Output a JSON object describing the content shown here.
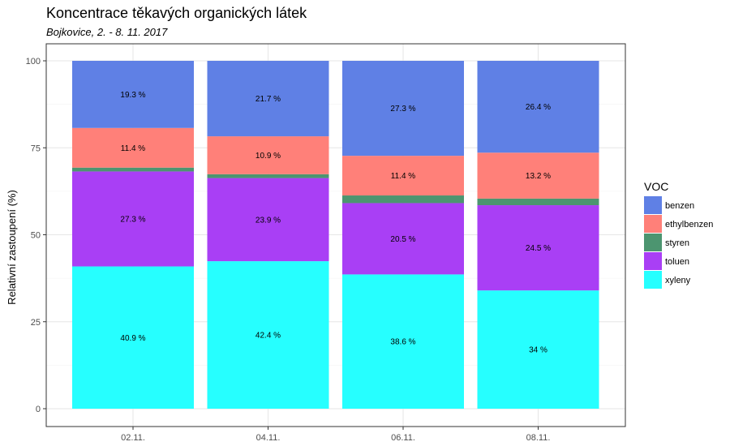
{
  "title": "Koncentrace těkavých organických látek",
  "subtitle": "Bojkovice, 2. - 8. 11. 2017",
  "chart_data": {
    "type": "bar",
    "stacked": true,
    "ylabel": "Relativní zastoupení (%)",
    "xlabel": "",
    "ylim": [
      0,
      100
    ],
    "yticks": [
      0,
      25,
      50,
      75,
      100
    ],
    "grid": true,
    "legend_position": "right",
    "legend_title": "VOC",
    "categories": [
      "02.11.",
      "04.11.",
      "06.11.",
      "08.11."
    ],
    "series": [
      {
        "name": "xyleny",
        "color": "#26FFFF",
        "values": [
          40.9,
          42.4,
          38.6,
          34.0
        ],
        "labels": [
          "40.9 %",
          "42.4 %",
          "38.6 %",
          "34 %"
        ]
      },
      {
        "name": "toluen",
        "color": "#A93FF5",
        "values": [
          27.3,
          23.9,
          20.5,
          24.5
        ],
        "labels": [
          "27.3 %",
          "23.9 %",
          "20.5 %",
          "24.5 %"
        ]
      },
      {
        "name": "styren",
        "color": "#4C9570",
        "values": [
          1.1,
          1.1,
          2.2,
          1.9
        ],
        "labels": [
          "",
          "",
          "",
          ""
        ]
      },
      {
        "name": "ethylbenzen",
        "color": "#FF8079",
        "values": [
          11.4,
          10.9,
          11.4,
          13.2
        ],
        "labels": [
          "11.4 %",
          "10.9 %",
          "11.4 %",
          "13.2 %"
        ]
      },
      {
        "name": "benzen",
        "color": "#5F80E5",
        "values": [
          19.3,
          21.7,
          27.3,
          26.4
        ],
        "labels": [
          "19.3 %",
          "21.7 %",
          "27.3 %",
          "26.4 %"
        ]
      }
    ],
    "legend_order": [
      "benzen",
      "ethylbenzen",
      "styren",
      "toluen",
      "xyleny"
    ]
  }
}
